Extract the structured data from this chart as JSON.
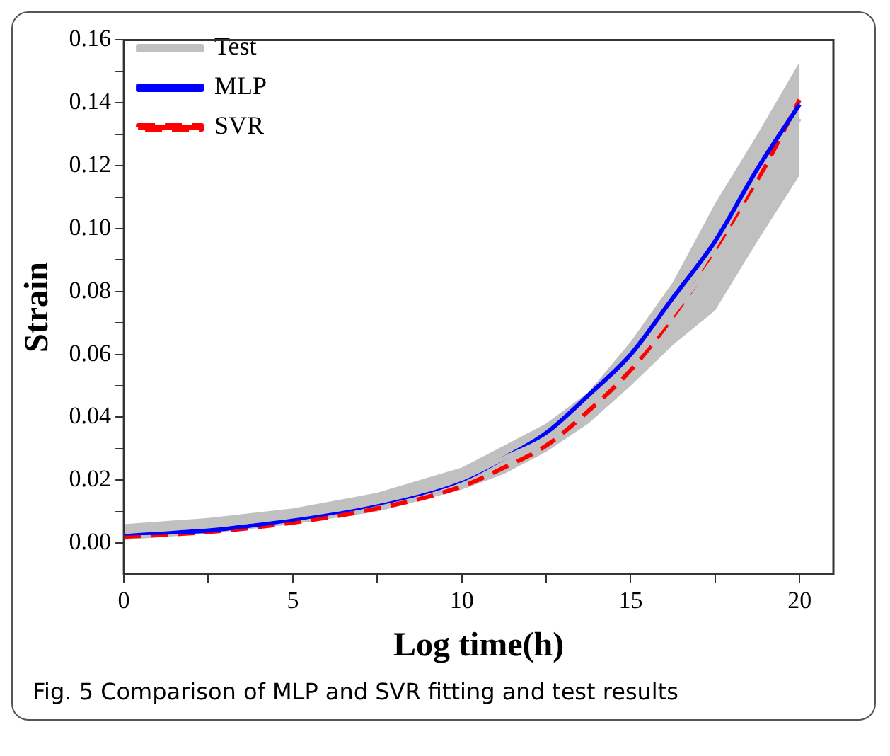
{
  "chart_data": {
    "type": "line",
    "xlabel": "Log time(h)",
    "ylabel": "Strain",
    "annotations": [
      "Fig. 5  Comparison of MLP and SVR fitting and test results"
    ],
    "x": [
      0,
      2.5,
      5,
      7.5,
      10,
      11.25,
      12.5,
      13.75,
      15,
      16.25,
      17.5,
      18.75,
      20
    ],
    "xlim": [
      0,
      21
    ],
    "xticks": [
      0,
      {
        "value": 2.5,
        "label": null
      },
      5,
      {
        "value": 7.5,
        "label": null
      },
      10,
      {
        "value": 12.5,
        "label": null
      },
      15,
      {
        "value": 17.5,
        "label": null
      },
      20
    ],
    "ylim": [
      -0.01,
      0.16
    ],
    "yticks": [
      {
        "value": 0,
        "label": "0.00"
      },
      {
        "value": 0.01,
        "label": null
      },
      0.02,
      {
        "value": 0.03,
        "label": null
      },
      0.04,
      {
        "value": 0.05,
        "label": null
      },
      0.06,
      {
        "value": 0.07,
        "label": null
      },
      0.08,
      {
        "value": 0.09,
        "label": null
      },
      {
        "value": 0.1,
        "label": "0.10"
      },
      {
        "value": 0.11,
        "label": null
      },
      0.12,
      {
        "value": 0.13,
        "label": null
      },
      0.14,
      {
        "value": 0.15,
        "label": null
      },
      0.16
    ],
    "grid": false,
    "legend": "top left",
    "marker": "none",
    "series": [
      {
        "name": "Test",
        "color": "#c0c0c0",
        "values": [
          0.0035,
          0.0055,
          0.0085,
          0.013,
          0.0205,
          0.027,
          0.0335,
          0.0445,
          0.057,
          0.073,
          0.091,
          0.113,
          0.135
        ],
        "lower": [
          0.001,
          0.003,
          0.006,
          0.01,
          0.017,
          0.022,
          0.029,
          0.038,
          0.05,
          0.063,
          0.074,
          0.096,
          0.117
        ],
        "upper": [
          0.006,
          0.008,
          0.011,
          0.016,
          0.024,
          0.031,
          0.038,
          0.048,
          0.064,
          0.083,
          0.108,
          0.13,
          0.153
        ]
      },
      {
        "name": "MLP",
        "color": "#0000ff",
        "values": [
          0.003,
          0.004,
          0.0075,
          0.0125,
          0.02,
          0.027,
          0.035,
          0.047,
          0.06,
          0.078,
          0.096,
          0.119,
          0.1395
        ],
        "line_style": "solid"
      },
      {
        "name": "SVR",
        "color": "#ff0000",
        "values": [
          0.002,
          0.0035,
          0.0065,
          0.011,
          0.018,
          0.024,
          0.031,
          0.042,
          0.055,
          0.072,
          0.092,
          0.115,
          0.141
        ],
        "line_style": "dashed"
      }
    ]
  }
}
